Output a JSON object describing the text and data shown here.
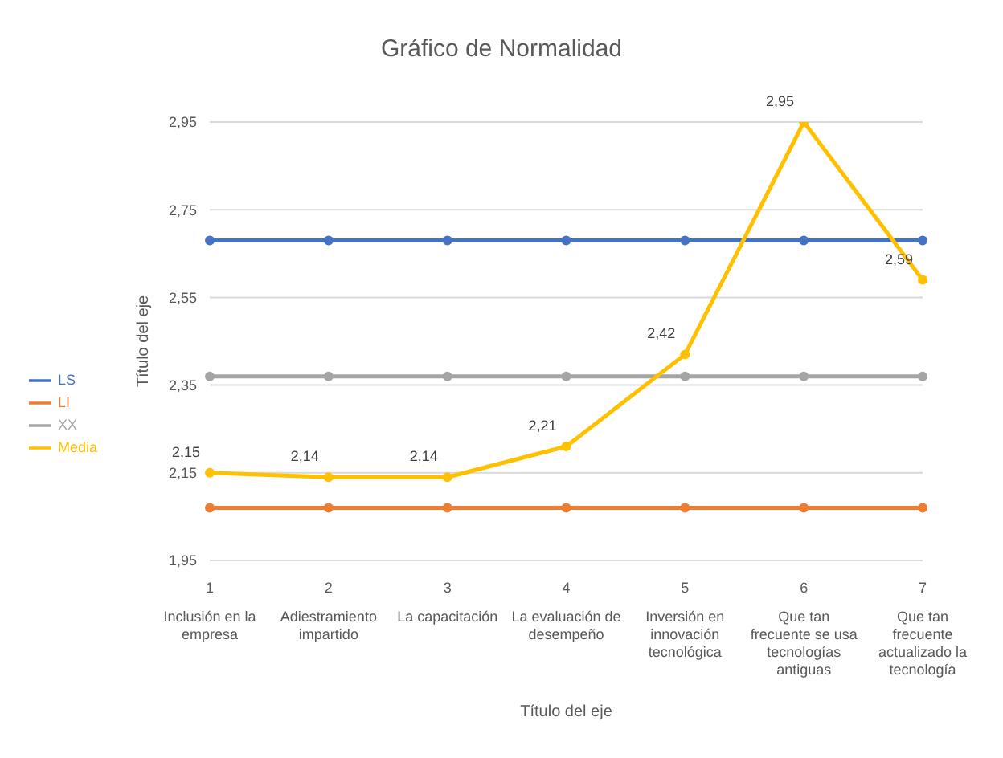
{
  "chart_data": {
    "type": "line",
    "title": "Gráfico de Normalidad",
    "xlabel": "Título del eje",
    "ylabel": "Título del eje",
    "categories": [
      "1\nInclusión en la empresa",
      "2\nAdiestramiento impartido",
      "3\nLa capacitación",
      "4\nLa evaluación de desempeño",
      "5\nInversión en innovación tecnológica",
      "6\nQue tan frecuente se usa tecnologías antiguas",
      "7\nQue tan frecuente actualizado la tecnología"
    ],
    "series": [
      {
        "name": "LS",
        "color": "#4472c4",
        "values": [
          2.68,
          2.68,
          2.68,
          2.68,
          2.68,
          2.68,
          2.68
        ]
      },
      {
        "name": "LI",
        "color": "#ed7d31",
        "values": [
          2.07,
          2.07,
          2.07,
          2.07,
          2.07,
          2.07,
          2.07
        ]
      },
      {
        "name": "XX",
        "color": "#a5a5a5",
        "values": [
          2.37,
          2.37,
          2.37,
          2.37,
          2.37,
          2.37,
          2.37
        ]
      },
      {
        "name": "Media",
        "color": "#ffc000",
        "values": [
          2.15,
          2.14,
          2.14,
          2.21,
          2.42,
          2.95,
          2.59
        ],
        "value_labels": [
          "2,15",
          "2,14",
          "2,14",
          "2,21",
          "2,42",
          "2,95",
          "2,59"
        ]
      }
    ],
    "ylim": [
      1.95,
      2.95
    ],
    "yticks": [
      {
        "value": 1.95,
        "label": "1,95"
      },
      {
        "value": 2.15,
        "label": "2,15"
      },
      {
        "value": 2.35,
        "label": "2,35"
      },
      {
        "value": 2.55,
        "label": "2,55"
      },
      {
        "value": 2.75,
        "label": "2,75"
      },
      {
        "value": 2.95,
        "label": "2,95"
      }
    ],
    "grid": "y",
    "legend": "left",
    "marker": "circle",
    "line_style": "solid"
  }
}
